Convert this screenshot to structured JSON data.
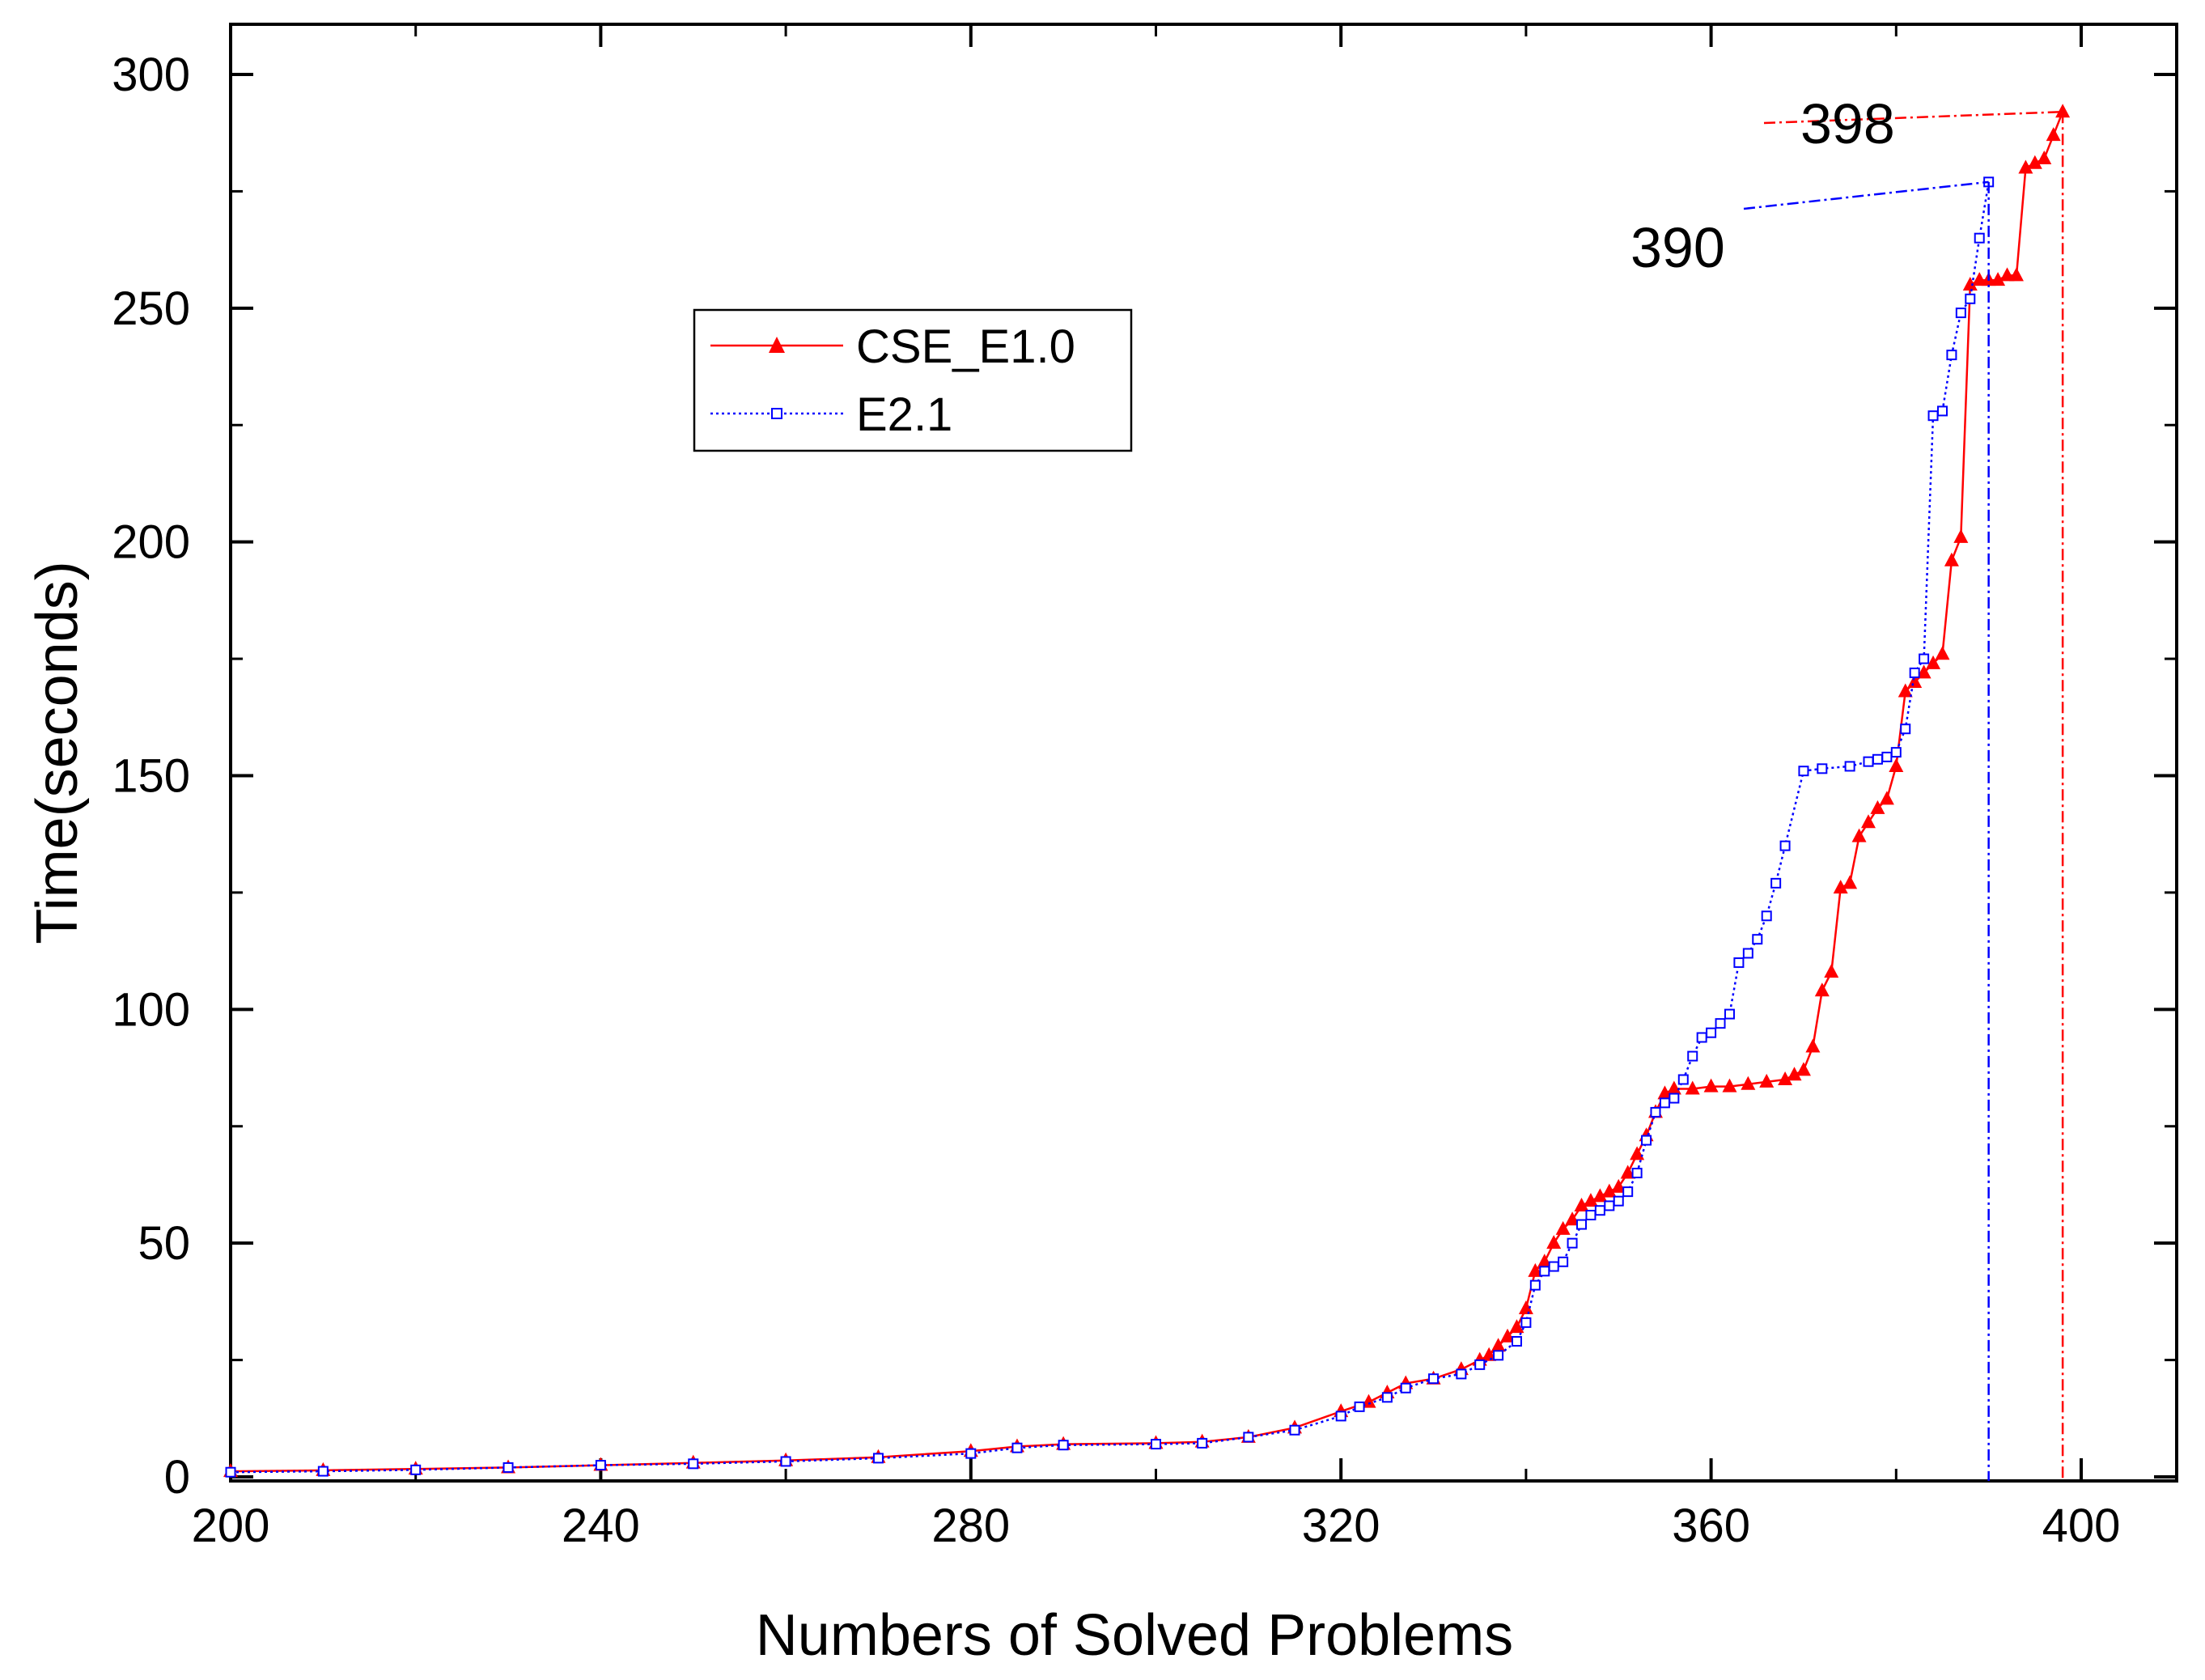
{
  "chart_data": {
    "type": "line",
    "title": "",
    "xlabel": "Numbers of Solved Problems",
    "ylabel": "Time(seconds)",
    "xlim": [
      200,
      410
    ],
    "ylim": [
      0,
      300
    ],
    "xticks": [
      200,
      240,
      280,
      320,
      360,
      400
    ],
    "yticks": [
      0,
      50,
      100,
      150,
      200,
      250,
      300
    ],
    "xtick_labels": [
      "200",
      "240",
      "280",
      "320",
      "360",
      "400"
    ],
    "ytick_labels": [
      "0",
      "50",
      "100",
      "150",
      "200",
      "250",
      "300"
    ],
    "grid": false,
    "legend_position": "upper-left",
    "series": [
      {
        "name": "CSE_E1.0",
        "color": "#ff0000",
        "marker": "triangle-filled",
        "line_style": "solid",
        "x": [
          200,
          210,
          220,
          230,
          240,
          250,
          260,
          270,
          280,
          285,
          290,
          300,
          305,
          310,
          315,
          320,
          323,
          325,
          327,
          330,
          333,
          335,
          336,
          337,
          338,
          339,
          340,
          341,
          342,
          343,
          344,
          345,
          346,
          347,
          348,
          349,
          350,
          351,
          352,
          353,
          354,
          355,
          356,
          358,
          360,
          362,
          364,
          366,
          368,
          369,
          370,
          371,
          372,
          373,
          374,
          375,
          376,
          377,
          378,
          379,
          380,
          381,
          382,
          383,
          384,
          385,
          386,
          387,
          388,
          389,
          390,
          391,
          392,
          393,
          394,
          395,
          396,
          397,
          398
        ],
        "y": [
          1.2,
          1.4,
          1.7,
          2,
          2.5,
          3,
          3.5,
          4.2,
          5.5,
          6.5,
          7,
          7.2,
          7.5,
          8.5,
          10.5,
          14,
          16,
          18,
          20,
          21,
          23,
          25,
          26,
          28,
          30,
          32,
          36,
          44,
          46,
          50,
          53,
          55,
          58,
          59,
          60,
          61,
          62,
          65,
          69,
          73,
          78,
          82,
          83,
          83,
          83.5,
          83.5,
          84,
          84.5,
          85,
          86,
          87,
          92,
          104,
          108,
          126,
          127,
          137,
          140,
          143,
          145,
          152,
          168,
          170,
          172,
          174,
          176,
          196,
          201,
          255,
          256,
          256,
          256,
          257,
          257,
          280,
          281,
          282,
          287,
          292
        ]
      },
      {
        "name": "E2.1",
        "color": "#0000ff",
        "marker": "square-open",
        "line_style": "dotted",
        "x": [
          200,
          210,
          220,
          230,
          240,
          250,
          260,
          270,
          280,
          285,
          290,
          300,
          305,
          310,
          315,
          320,
          322,
          325,
          327,
          330,
          333,
          335,
          337,
          339,
          340,
          341,
          342,
          343,
          344,
          345,
          346,
          347,
          348,
          349,
          350,
          351,
          352,
          353,
          354,
          355,
          356,
          357,
          358,
          359,
          360,
          361,
          362,
          363,
          364,
          365,
          366,
          367,
          368,
          370,
          372,
          375,
          377,
          378,
          379,
          380,
          381,
          382,
          383,
          384,
          385,
          386,
          387,
          388,
          389,
          390
        ],
        "y": [
          1,
          1.2,
          1.5,
          2,
          2.5,
          2.8,
          3.3,
          4,
          5,
          6.2,
          6.8,
          7,
          7.2,
          8.5,
          10,
          13,
          15,
          17,
          19,
          21,
          22,
          24,
          26,
          29,
          33,
          41,
          44,
          45,
          46,
          50,
          54,
          56,
          57,
          58,
          59,
          61,
          65,
          72,
          78,
          80,
          81,
          85,
          90,
          94,
          95,
          97,
          99,
          110,
          112,
          115,
          120,
          127,
          135,
          151,
          151.5,
          152,
          153,
          153.5,
          154,
          155,
          160,
          172,
          175,
          227,
          228,
          240,
          249,
          252,
          265,
          277
        ]
      }
    ],
    "annotations": [
      {
        "text": "398",
        "x": 398,
        "y": 292
      },
      {
        "text": "390",
        "x": 390,
        "y": 277
      }
    ]
  }
}
